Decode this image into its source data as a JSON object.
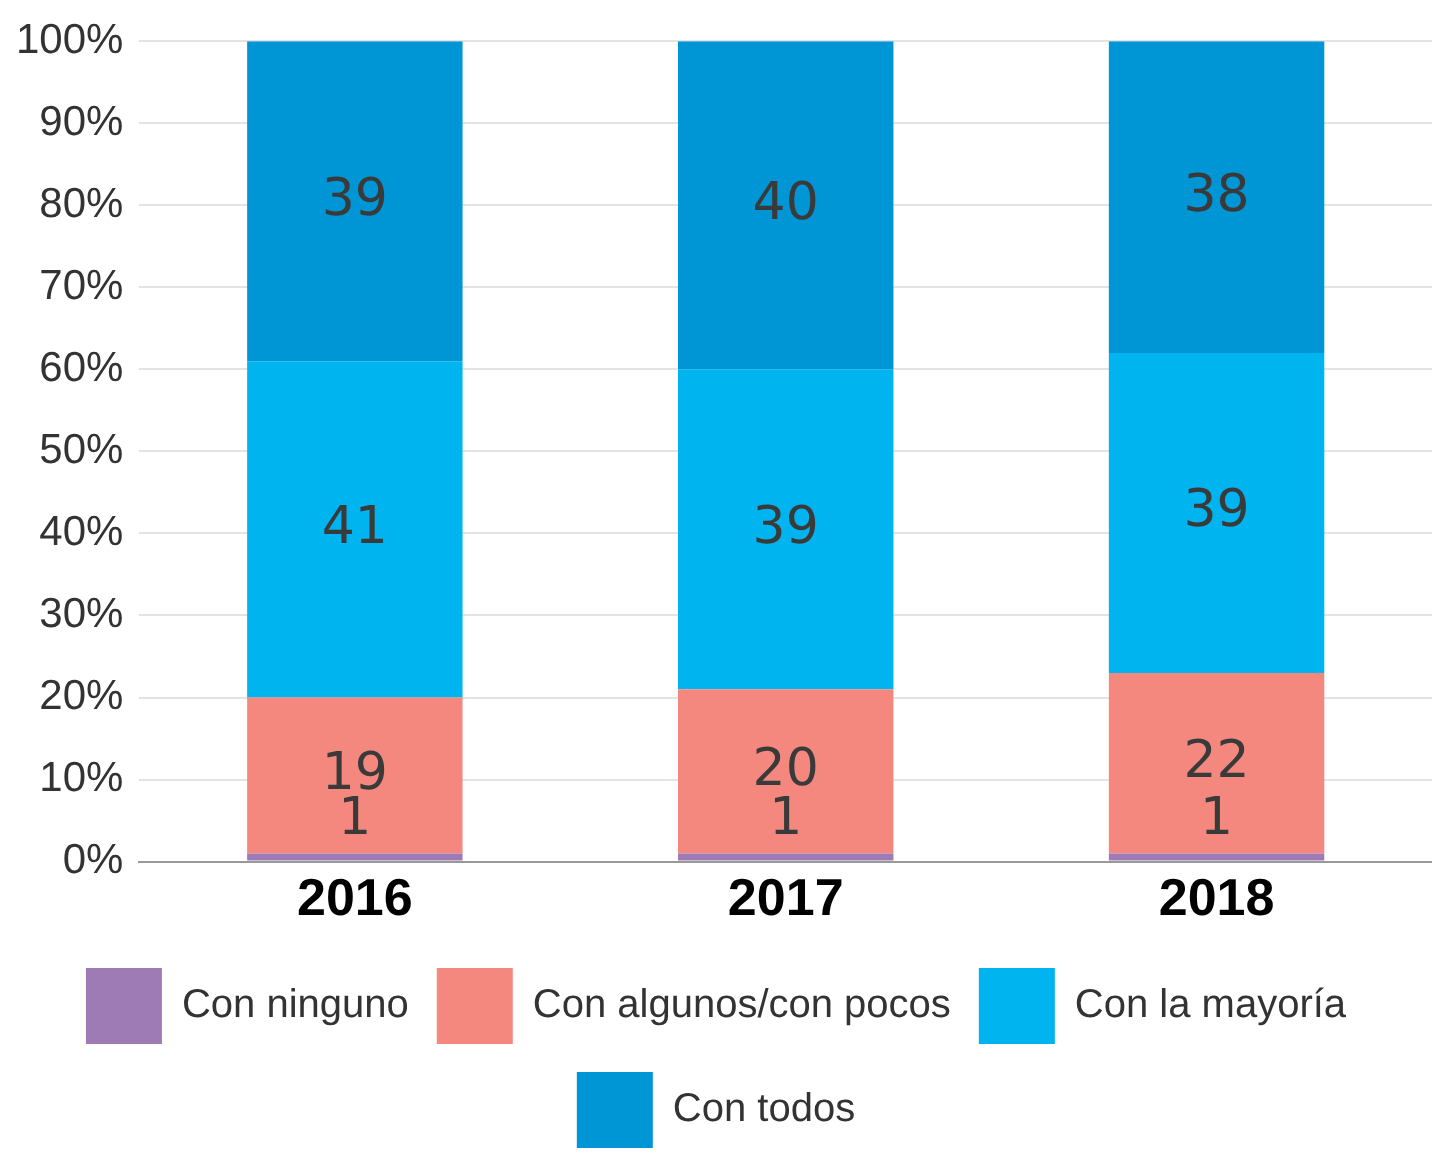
{
  "chart_data": {
    "type": "bar",
    "stacked": true,
    "categories": [
      "2016",
      "2017",
      "2018"
    ],
    "series": [
      {
        "name": "Con ninguno",
        "color": "#9e7bb5",
        "values": [
          1,
          1,
          1
        ]
      },
      {
        "name": "Con algunos/con pocos",
        "color": "#f4887f",
        "values": [
          19,
          20,
          22
        ]
      },
      {
        "name": "Con la mayoría",
        "color": "#00b4ef",
        "values": [
          41,
          39,
          39
        ]
      },
      {
        "name": "Con todos",
        "color": "#0096d6",
        "values": [
          39,
          40,
          38
        ]
      }
    ],
    "ylim": [
      0,
      100
    ],
    "yticks": [
      {
        "value": 0,
        "label": "0%"
      },
      {
        "value": 10,
        "label": "10%"
      },
      {
        "value": 20,
        "label": "20%"
      },
      {
        "value": 30,
        "label": "30%"
      },
      {
        "value": 40,
        "label": "40%"
      },
      {
        "value": 50,
        "label": "50%"
      },
      {
        "value": 60,
        "label": "60%"
      },
      {
        "value": 70,
        "label": "70%"
      },
      {
        "value": 80,
        "label": "80%"
      },
      {
        "value": 90,
        "label": "90%"
      },
      {
        "value": 100,
        "label": "100%"
      }
    ],
    "grid": "y",
    "legend": "bottom",
    "data_labels": true
  }
}
